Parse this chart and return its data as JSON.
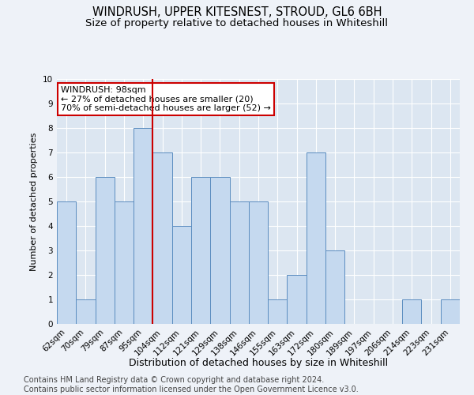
{
  "title": "WINDRUSH, UPPER KITESNEST, STROUD, GL6 6BH",
  "subtitle": "Size of property relative to detached houses in Whiteshill",
  "xlabel": "Distribution of detached houses by size in Whiteshill",
  "ylabel": "Number of detached properties",
  "categories": [
    "62sqm",
    "70sqm",
    "79sqm",
    "87sqm",
    "95sqm",
    "104sqm",
    "112sqm",
    "121sqm",
    "129sqm",
    "138sqm",
    "146sqm",
    "155sqm",
    "163sqm",
    "172sqm",
    "180sqm",
    "189sqm",
    "197sqm",
    "206sqm",
    "214sqm",
    "223sqm",
    "231sqm"
  ],
  "values": [
    5,
    1,
    6,
    5,
    8,
    7,
    4,
    6,
    6,
    5,
    5,
    1,
    2,
    7,
    3,
    0,
    0,
    0,
    1,
    0,
    1
  ],
  "bar_color": "#c5d9ef",
  "bar_edge_color": "#5b8dc0",
  "red_line_x": 4.5,
  "annotation_line1": "WINDRUSH: 98sqm",
  "annotation_line2": "← 27% of detached houses are smaller (20)",
  "annotation_line3": "70% of semi-detached houses are larger (52) →",
  "annotation_box_color": "#ffffff",
  "annotation_box_edge": "#cc0000",
  "ylim": [
    0,
    10
  ],
  "yticks": [
    0,
    1,
    2,
    3,
    4,
    5,
    6,
    7,
    8,
    9,
    10
  ],
  "footer_line1": "Contains HM Land Registry data © Crown copyright and database right 2024.",
  "footer_line2": "Contains public sector information licensed under the Open Government Licence v3.0.",
  "background_color": "#eef2f8",
  "plot_background": "#dce6f1",
  "grid_color": "#ffffff",
  "title_fontsize": 10.5,
  "subtitle_fontsize": 9.5,
  "xlabel_fontsize": 9,
  "ylabel_fontsize": 8,
  "tick_fontsize": 7.5,
  "footer_fontsize": 7,
  "annot_fontsize": 8
}
